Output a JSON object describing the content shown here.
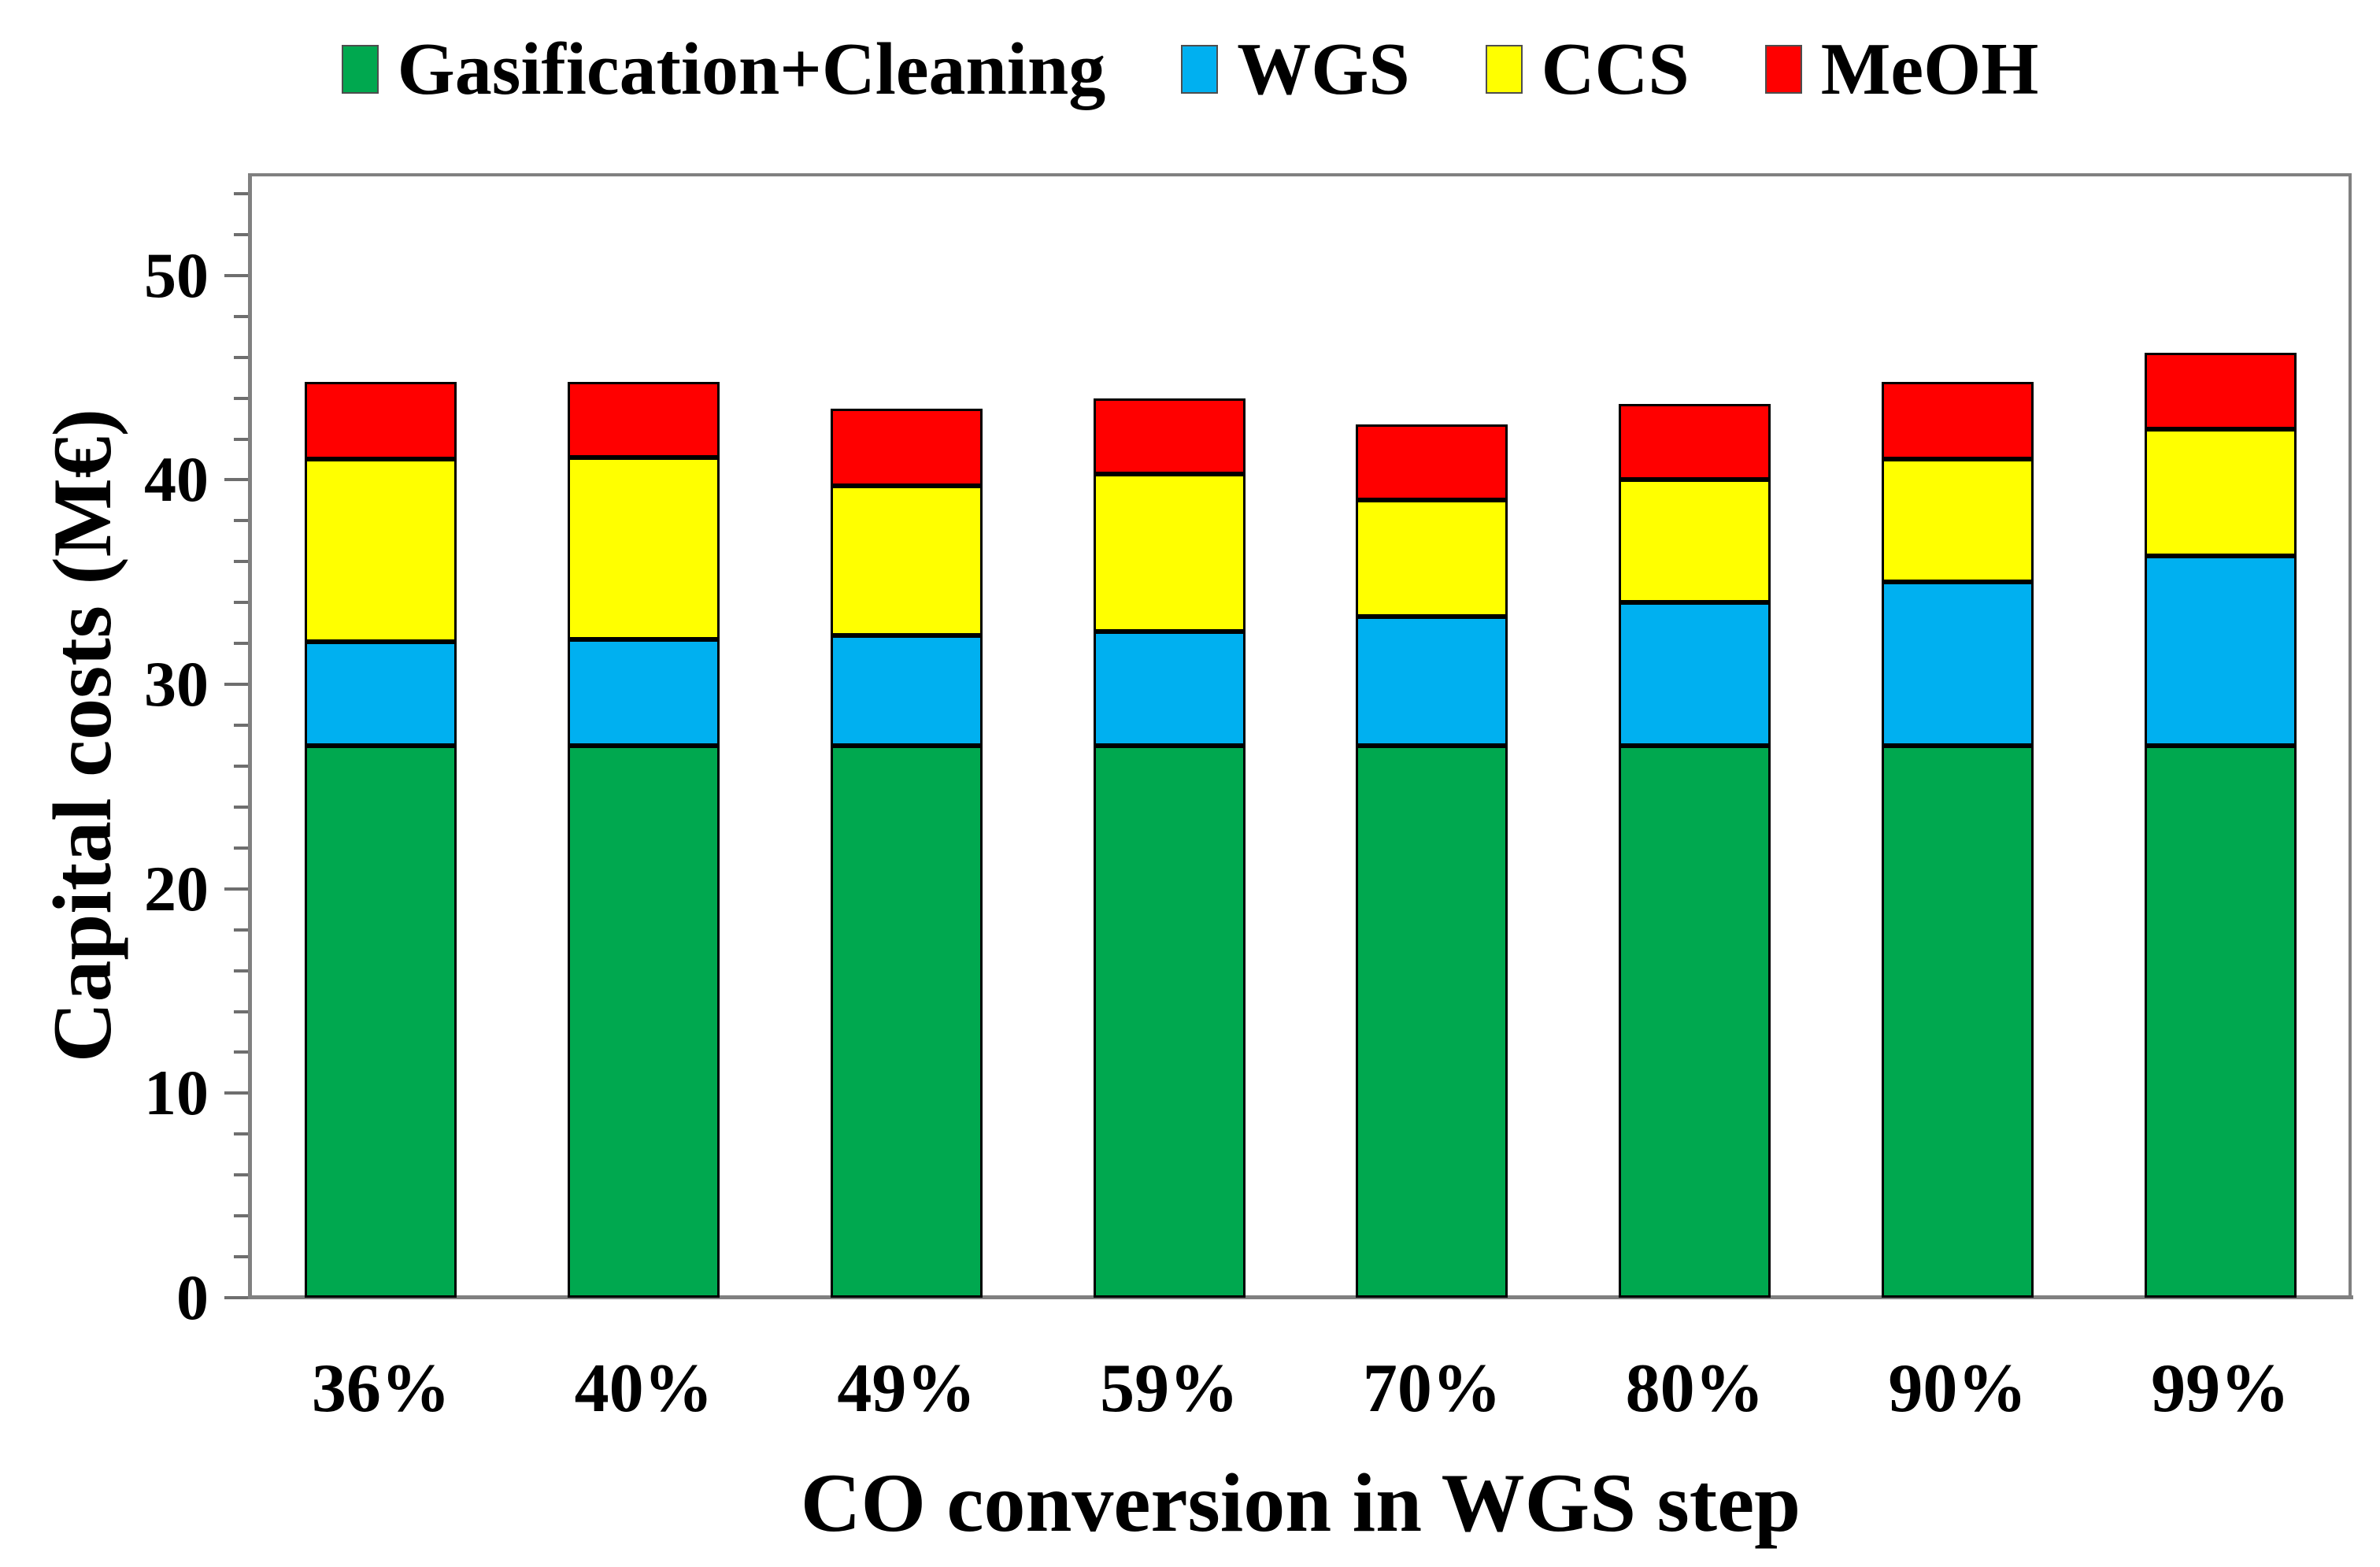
{
  "legend": {
    "items": [
      {
        "label": "Gasification+Cleaning",
        "color": "#00A84F"
      },
      {
        "label": "WGS",
        "color": "#00B0F0"
      },
      {
        "label": "CCS",
        "color": "#FFFF00"
      },
      {
        "label": "MeOH",
        "color": "#FF0000"
      }
    ]
  },
  "y_axis": {
    "label": "Capital costs (M€)",
    "major_ticks": [
      0,
      10,
      20,
      30,
      40,
      50
    ],
    "minor_tick_step": 2,
    "max": 55
  },
  "x_axis": {
    "label": "CO conversion in WGS step",
    "categories": [
      "36%",
      "40%",
      "49%",
      "59%",
      "70%",
      "80%",
      "90%",
      "99%"
    ]
  },
  "colors": {
    "gasification": "#00A84F",
    "wgs": "#00B0F0",
    "ccs": "#FFFF00",
    "meoh": "#FF0000",
    "frame": "#808080",
    "text": "#000000"
  },
  "chart_data": {
    "type": "bar",
    "stacked": true,
    "title": "",
    "xlabel": "CO conversion in WGS step",
    "ylabel": "Capital costs (M€)",
    "ylim": [
      0,
      55
    ],
    "grid": false,
    "legend_position": "top",
    "categories": [
      "36%",
      "40%",
      "49%",
      "59%",
      "70%",
      "80%",
      "90%",
      "99%"
    ],
    "series": [
      {
        "name": "Gasification+Cleaning",
        "color": "#00A84F",
        "values": [
          27.0,
          27.0,
          27.0,
          27.0,
          27.0,
          27.0,
          27.0,
          27.0
        ]
      },
      {
        "name": "WGS",
        "color": "#00B0F0",
        "values": [
          5.1,
          5.2,
          5.4,
          5.6,
          6.3,
          7.0,
          8.0,
          9.3
        ]
      },
      {
        "name": "CCS",
        "color": "#FFFF00",
        "values": [
          8.9,
          8.9,
          7.3,
          7.7,
          5.7,
          6.0,
          6.0,
          6.2
        ]
      },
      {
        "name": "MeOH",
        "color": "#FF0000",
        "values": [
          3.8,
          3.7,
          3.8,
          3.7,
          3.7,
          3.7,
          3.8,
          3.7
        ]
      }
    ],
    "stack_totals": [
      44.8,
      44.8,
      43.5,
      44.0,
      42.7,
      43.7,
      44.8,
      46.2
    ]
  }
}
